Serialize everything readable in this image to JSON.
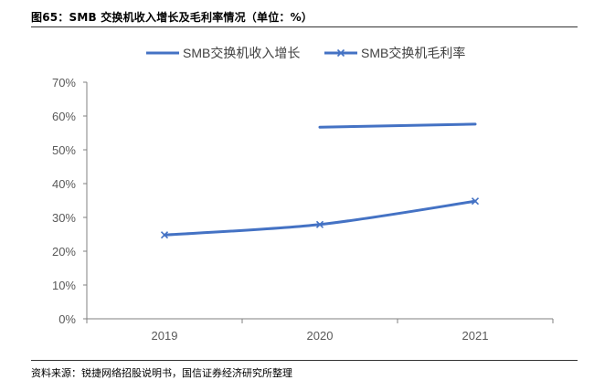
{
  "figure": {
    "title": "图65：SMB 交换机收入增长及毛利率情况（单位：%）",
    "source": "资料来源：锐捷网络招股说明书，国信证券经济研究所整理"
  },
  "chart_data": {
    "type": "line",
    "categories": [
      "2019",
      "2020",
      "2021"
    ],
    "y_ticks": [
      "0%",
      "10%",
      "20%",
      "30%",
      "40%",
      "50%",
      "60%",
      "70%"
    ],
    "ylim": [
      0,
      70
    ],
    "grid": false,
    "legend_position": "top",
    "series": [
      {
        "name": "SMB交换机收入增长",
        "values": [
          null,
          56.7,
          57.6
        ],
        "color": "#4472C4",
        "marker": "none"
      },
      {
        "name": "SMB交换机毛利率",
        "values": [
          24.8,
          27.9,
          34.8
        ],
        "color": "#4472C4",
        "marker": "x"
      }
    ]
  }
}
